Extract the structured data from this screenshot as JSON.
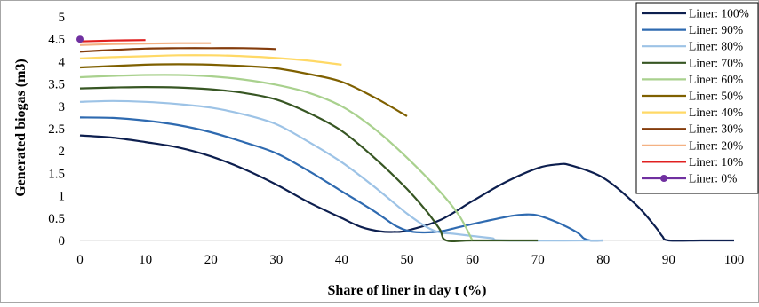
{
  "chart_data": {
    "type": "line",
    "title": "",
    "xlabel": "Share of liner in day t (%)",
    "ylabel": "Generated biogas (m3)",
    "xlim": [
      0,
      100
    ],
    "ylim": [
      0,
      5
    ],
    "x_ticks": [
      "0",
      "10",
      "20",
      "30",
      "40",
      "50",
      "60",
      "70",
      "80",
      "90",
      "100"
    ],
    "y_ticks": [
      "0",
      "0.5",
      "1",
      "1.5",
      "2",
      "2.5",
      "3",
      "3.5",
      "4",
      "4.5",
      "5"
    ],
    "grid": false,
    "legend_position": "top-right",
    "series": [
      {
        "name": "Liner: 100%",
        "color": "#0d1f4f",
        "marker": false,
        "points": [
          [
            0,
            2.35
          ],
          [
            5,
            2.3
          ],
          [
            10,
            2.2
          ],
          [
            15,
            2.08
          ],
          [
            20,
            1.88
          ],
          [
            25,
            1.6
          ],
          [
            30,
            1.25
          ],
          [
            35,
            0.85
          ],
          [
            40,
            0.5
          ],
          [
            43,
            0.3
          ],
          [
            46,
            0.2
          ],
          [
            48,
            0.19
          ],
          [
            50,
            0.22
          ],
          [
            55,
            0.45
          ],
          [
            60,
            0.88
          ],
          [
            65,
            1.3
          ],
          [
            70,
            1.62
          ],
          [
            73,
            1.7
          ],
          [
            75,
            1.68
          ],
          [
            80,
            1.4
          ],
          [
            85,
            0.8
          ],
          [
            88,
            0.3
          ],
          [
            89,
            0.1
          ],
          [
            90,
            0
          ],
          [
            95,
            0
          ],
          [
            100,
            0
          ]
        ]
      },
      {
        "name": "Liner: 90%",
        "color": "#2e6ab0",
        "marker": false,
        "points": [
          [
            0,
            2.75
          ],
          [
            5,
            2.74
          ],
          [
            10,
            2.68
          ],
          [
            15,
            2.58
          ],
          [
            20,
            2.42
          ],
          [
            25,
            2.2
          ],
          [
            30,
            1.95
          ],
          [
            35,
            1.55
          ],
          [
            40,
            1.1
          ],
          [
            45,
            0.65
          ],
          [
            48,
            0.35
          ],
          [
            50,
            0.22
          ],
          [
            52,
            0.18
          ],
          [
            55,
            0.2
          ],
          [
            58,
            0.3
          ],
          [
            62,
            0.43
          ],
          [
            66,
            0.55
          ],
          [
            68,
            0.58
          ],
          [
            70,
            0.56
          ],
          [
            73,
            0.4
          ],
          [
            76,
            0.18
          ],
          [
            77,
            0.05
          ],
          [
            78,
            0
          ],
          [
            80,
            0
          ]
        ]
      },
      {
        "name": "Liner: 80%",
        "color": "#9dc3e6",
        "marker": false,
        "points": [
          [
            0,
            3.1
          ],
          [
            5,
            3.12
          ],
          [
            10,
            3.1
          ],
          [
            15,
            3.05
          ],
          [
            20,
            2.97
          ],
          [
            25,
            2.82
          ],
          [
            30,
            2.6
          ],
          [
            35,
            2.2
          ],
          [
            40,
            1.75
          ],
          [
            45,
            1.2
          ],
          [
            50,
            0.6
          ],
          [
            53,
            0.3
          ],
          [
            55,
            0.18
          ],
          [
            57,
            0.15
          ],
          [
            60,
            0.1
          ],
          [
            63,
            0.05
          ],
          [
            65,
            0
          ],
          [
            80,
            0
          ]
        ]
      },
      {
        "name": "Liner: 70%",
        "color": "#375623",
        "marker": false,
        "points": [
          [
            0,
            3.4
          ],
          [
            5,
            3.42
          ],
          [
            10,
            3.43
          ],
          [
            15,
            3.42
          ],
          [
            20,
            3.38
          ],
          [
            25,
            3.3
          ],
          [
            30,
            3.15
          ],
          [
            35,
            2.85
          ],
          [
            40,
            2.45
          ],
          [
            45,
            1.85
          ],
          [
            50,
            1.15
          ],
          [
            53,
            0.65
          ],
          [
            55,
            0.25
          ],
          [
            56,
            0
          ],
          [
            60,
            0
          ],
          [
            70,
            0
          ]
        ]
      },
      {
        "name": "Liner: 60%",
        "color": "#a9d18e",
        "marker": false,
        "points": [
          [
            0,
            3.65
          ],
          [
            5,
            3.68
          ],
          [
            10,
            3.7
          ],
          [
            15,
            3.7
          ],
          [
            20,
            3.67
          ],
          [
            25,
            3.6
          ],
          [
            30,
            3.48
          ],
          [
            35,
            3.3
          ],
          [
            40,
            3.0
          ],
          [
            45,
            2.5
          ],
          [
            50,
            1.85
          ],
          [
            55,
            1.1
          ],
          [
            58,
            0.55
          ],
          [
            60,
            0
          ]
        ]
      },
      {
        "name": "Liner: 50%",
        "color": "#7f6000",
        "marker": false,
        "points": [
          [
            0,
            3.87
          ],
          [
            5,
            3.9
          ],
          [
            10,
            3.93
          ],
          [
            15,
            3.94
          ],
          [
            20,
            3.93
          ],
          [
            25,
            3.9
          ],
          [
            30,
            3.85
          ],
          [
            35,
            3.72
          ],
          [
            40,
            3.55
          ],
          [
            45,
            3.2
          ],
          [
            50,
            2.78
          ]
        ]
      },
      {
        "name": "Liner: 40%",
        "color": "#ffd966",
        "marker": false,
        "points": [
          [
            0,
            4.07
          ],
          [
            5,
            4.1
          ],
          [
            10,
            4.12
          ],
          [
            15,
            4.14
          ],
          [
            20,
            4.14
          ],
          [
            25,
            4.12
          ],
          [
            30,
            4.08
          ],
          [
            35,
            4.02
          ],
          [
            40,
            3.93
          ]
        ]
      },
      {
        "name": "Liner: 30%",
        "color": "#843c0c",
        "marker": false,
        "points": [
          [
            0,
            4.22
          ],
          [
            5,
            4.26
          ],
          [
            10,
            4.29
          ],
          [
            15,
            4.3
          ],
          [
            20,
            4.3
          ],
          [
            25,
            4.3
          ],
          [
            30,
            4.28
          ]
        ]
      },
      {
        "name": "Liner: 20%",
        "color": "#f4b183",
        "marker": false,
        "points": [
          [
            0,
            4.37
          ],
          [
            5,
            4.39
          ],
          [
            10,
            4.4
          ],
          [
            15,
            4.41
          ],
          [
            20,
            4.41
          ]
        ]
      },
      {
        "name": "Liner: 10%",
        "color": "#e02020",
        "marker": false,
        "points": [
          [
            0,
            4.45
          ],
          [
            5,
            4.47
          ],
          [
            10,
            4.48
          ]
        ]
      },
      {
        "name": "Liner: 0%",
        "color": "#7030a0",
        "marker": true,
        "points": [
          [
            0,
            4.5
          ]
        ]
      }
    ]
  }
}
